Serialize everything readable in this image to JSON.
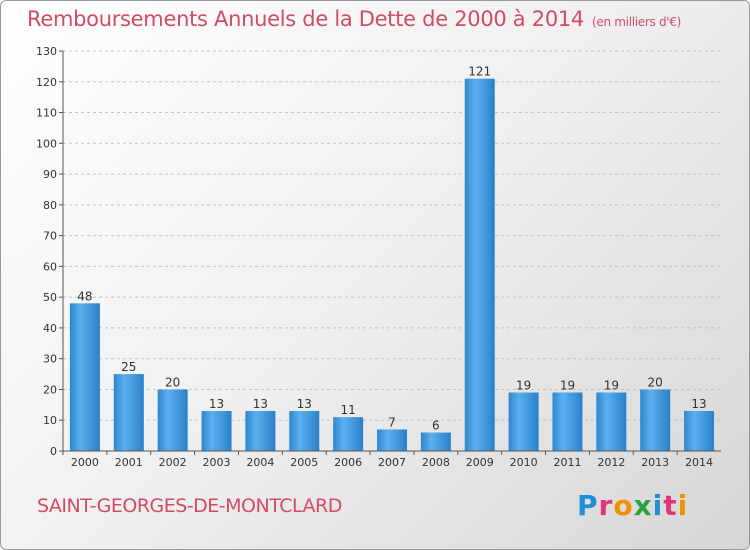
{
  "header": {
    "title": "Remboursements Annuels de la Dette de 2000 à 2014",
    "unit": "(en milliers d'€)"
  },
  "footer": {
    "town": "SAINT-GEORGES-DE-MONTCLARD",
    "logo_text": "Proxiti",
    "logo_colors": [
      "#1f8fd6",
      "#e0357a",
      "#f29100",
      "#2aa33f",
      "#1f8fd6",
      "#e0357a",
      "#f29100"
    ]
  },
  "chart_data": {
    "type": "bar",
    "title": "Remboursements Annuels de la Dette de 2000 à 2014",
    "subtitle": "(en milliers d'€)",
    "categories": [
      "2000",
      "2001",
      "2002",
      "2003",
      "2004",
      "2005",
      "2006",
      "2007",
      "2008",
      "2009",
      "2010",
      "2011",
      "2012",
      "2013",
      "2014"
    ],
    "values": [
      48,
      25,
      20,
      13,
      13,
      13,
      11,
      7,
      6,
      121,
      19,
      19,
      19,
      20,
      13
    ],
    "ylim": [
      0,
      130
    ],
    "yticks": [
      0,
      10,
      20,
      30,
      40,
      50,
      60,
      70,
      80,
      90,
      100,
      110,
      120,
      130
    ],
    "grid": "horizontal-dashed",
    "bar_color": "#3d99e0",
    "bar_color_light": "#63b3ef"
  }
}
